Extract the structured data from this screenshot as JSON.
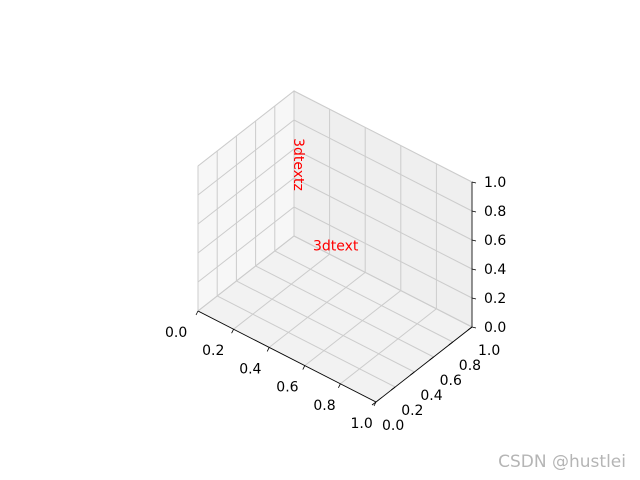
{
  "chart_data": {
    "type": "scatter",
    "projection": "3d",
    "title": "",
    "xlabel": "",
    "ylabel": "",
    "zlabel": "",
    "xlim": [
      0,
      1
    ],
    "ylim": [
      0,
      1
    ],
    "zlim": [
      0,
      1
    ],
    "grid": true,
    "x_ticks": [
      "0.0",
      "0.2",
      "0.4",
      "0.6",
      "0.8",
      "1.0"
    ],
    "y_ticks": [
      "0.0",
      "0.2",
      "0.4",
      "0.6",
      "0.8",
      "1.0"
    ],
    "z_ticks": [
      "0.0",
      "0.2",
      "0.4",
      "0.6",
      "0.8",
      "1.0"
    ],
    "annotations": [
      {
        "text": "3dtext",
        "x": 0.5,
        "y": 0.5,
        "z": 0.5,
        "color": "#ff0000",
        "direction": "horizontal"
      },
      {
        "text": "3dtextz",
        "x": 0.1,
        "y": 0.9,
        "z": 0.5,
        "color": "#ff0000",
        "direction": "z"
      }
    ],
    "pane_colors": {
      "left": "#f7f7f7",
      "right": "#efefef",
      "floor": "#f2f2f2"
    },
    "grid_color": "#cccccc"
  },
  "watermark": "CSDN @hustlei"
}
